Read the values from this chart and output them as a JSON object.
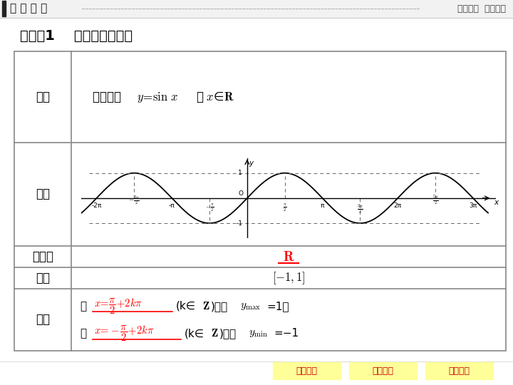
{
  "bg_color": "#ffffff",
  "header_text": "课 前 预 习",
  "header_right": "自主学习  积淀基础",
  "title_text": "知识点1    正弦函数的性质",
  "row_labels": [
    "函数",
    "图像",
    "定义域",
    "值域",
    "最值"
  ],
  "range_text": "[−1,1]",
  "footer_tabs": [
    "课前预习",
    "课堂互动",
    "课堂反馈"
  ],
  "footer_tab_bg": "#ffff99",
  "footer_tab_text_color": "#cc0000",
  "red_color": "#ff0000",
  "dashed_color": "#666666",
  "table_line_color": "#888888",
  "header_bg": "#f0f0f0",
  "dot_color": "#aaaaaa"
}
